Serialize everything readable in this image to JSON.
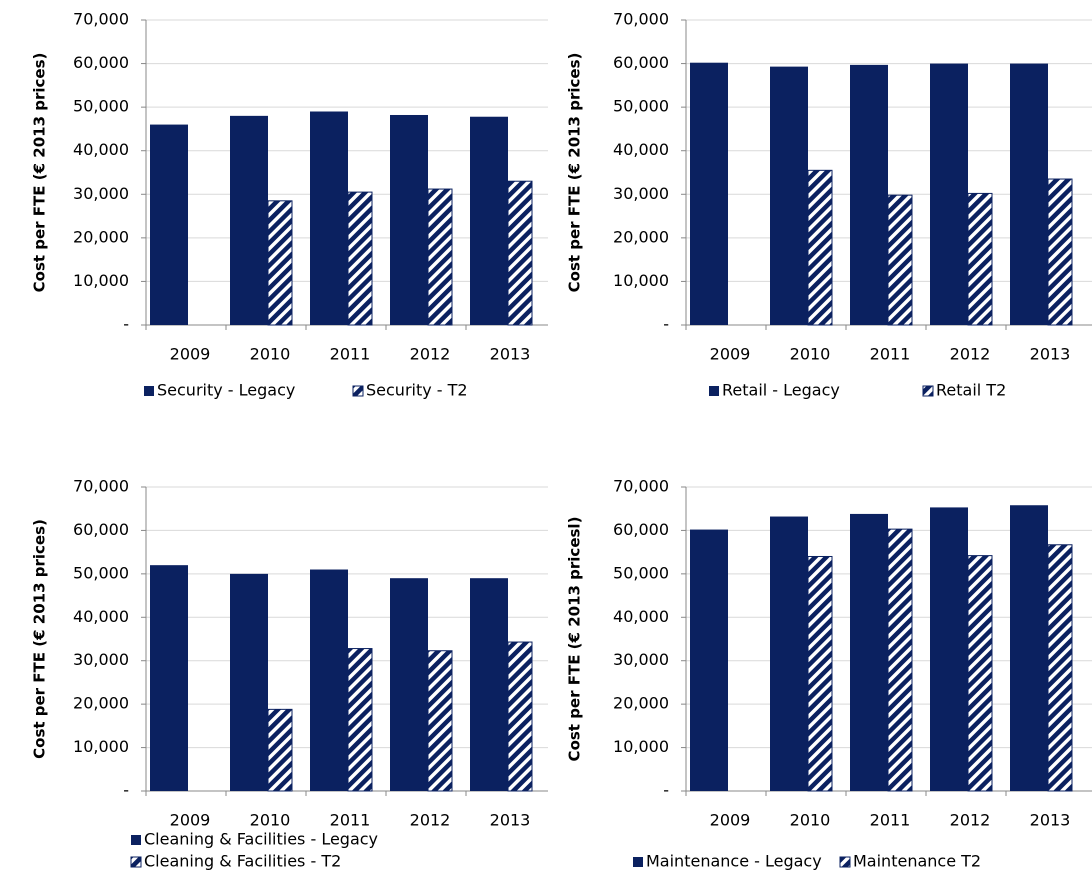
{
  "chart_data": [
    {
      "type": "bar",
      "y_label": "Cost per FTE (€ 2013 prices)",
      "categories": [
        "2009",
        "2010",
        "2011",
        "2012",
        "2013"
      ],
      "series": [
        {
          "name": "Security - Legacy",
          "color": "#0b2160",
          "hatch": false,
          "values": [
            46000,
            48000,
            49000,
            48200,
            47800
          ]
        },
        {
          "name": "Security - T2",
          "color": "#0b2160",
          "hatch": true,
          "values": [
            null,
            28500,
            30500,
            31200,
            33000
          ]
        }
      ],
      "ylim": [
        0,
        70000
      ],
      "yticks": [
        {
          "value": 0,
          "label": "-"
        },
        {
          "value": 10000,
          "label": "10,000"
        },
        {
          "value": 20000,
          "label": "20,000"
        },
        {
          "value": 30000,
          "label": "30,000"
        },
        {
          "value": 40000,
          "label": "40,000"
        },
        {
          "value": 50000,
          "label": "50,000"
        },
        {
          "value": 60000,
          "label": "60,000"
        },
        {
          "value": 70000,
          "label": "70,000"
        }
      ],
      "grid": true
    },
    {
      "type": "bar",
      "y_label": "Cost per FTE (€ 2013 prices)",
      "categories": [
        "2009",
        "2010",
        "2011",
        "2012",
        "2013"
      ],
      "series": [
        {
          "name": "Retail - Legacy",
          "color": "#0b2160",
          "hatch": false,
          "values": [
            60200,
            59300,
            59700,
            60000,
            60000
          ]
        },
        {
          "name": "Retail T2",
          "color": "#0b2160",
          "hatch": true,
          "values": [
            null,
            35500,
            29800,
            30200,
            33500
          ]
        }
      ],
      "ylim": [
        0,
        70000
      ],
      "yticks": [
        {
          "value": 0,
          "label": "-"
        },
        {
          "value": 10000,
          "label": "10,000"
        },
        {
          "value": 20000,
          "label": "20,000"
        },
        {
          "value": 30000,
          "label": "30,000"
        },
        {
          "value": 40000,
          "label": "40,000"
        },
        {
          "value": 50000,
          "label": "50,000"
        },
        {
          "value": 60000,
          "label": "60,000"
        },
        {
          "value": 70000,
          "label": "70,000"
        }
      ],
      "grid": true
    },
    {
      "type": "bar",
      "y_label": "Cost per FTE (€ 2013 prices)",
      "categories": [
        "2009",
        "2010",
        "2011",
        "2012",
        "2013"
      ],
      "series": [
        {
          "name": "Cleaning & Facilities - Legacy",
          "color": "#0b2160",
          "hatch": false,
          "values": [
            52000,
            50000,
            51000,
            49000,
            49000
          ]
        },
        {
          "name": "Cleaning & Facilities - T2",
          "color": "#0b2160",
          "hatch": true,
          "values": [
            null,
            18800,
            32800,
            32300,
            34300
          ]
        }
      ],
      "ylim": [
        0,
        70000
      ],
      "yticks": [
        {
          "value": 0,
          "label": "-"
        },
        {
          "value": 10000,
          "label": "10,000"
        },
        {
          "value": 20000,
          "label": "20,000"
        },
        {
          "value": 30000,
          "label": "30,000"
        },
        {
          "value": 40000,
          "label": "40,000"
        },
        {
          "value": 50000,
          "label": "50,000"
        },
        {
          "value": 60000,
          "label": "60,000"
        },
        {
          "value": 70000,
          "label": "70,000"
        }
      ],
      "grid": true
    },
    {
      "type": "bar",
      "y_label": "Cost per FTE (€ 2013 pricesl)",
      "categories": [
        "2009",
        "2010",
        "2011",
        "2012",
        "2013"
      ],
      "series": [
        {
          "name": "Maintenance - Legacy",
          "color": "#0b2160",
          "hatch": false,
          "values": [
            60200,
            63200,
            63800,
            65300,
            65800
          ]
        },
        {
          "name": "Maintenance T2",
          "color": "#0b2160",
          "hatch": true,
          "values": [
            null,
            54000,
            60300,
            54200,
            56700
          ]
        }
      ],
      "ylim": [
        0,
        70000
      ],
      "yticks": [
        {
          "value": 0,
          "label": "-"
        },
        {
          "value": 10000,
          "label": "10,000"
        },
        {
          "value": 20000,
          "label": "20,000"
        },
        {
          "value": 30000,
          "label": "30,000"
        },
        {
          "value": 40000,
          "label": "40,000"
        },
        {
          "value": 50000,
          "label": "50,000"
        },
        {
          "value": 60000,
          "label": "60,000"
        },
        {
          "value": 70000,
          "label": "70,000"
        }
      ],
      "grid": true
    }
  ]
}
